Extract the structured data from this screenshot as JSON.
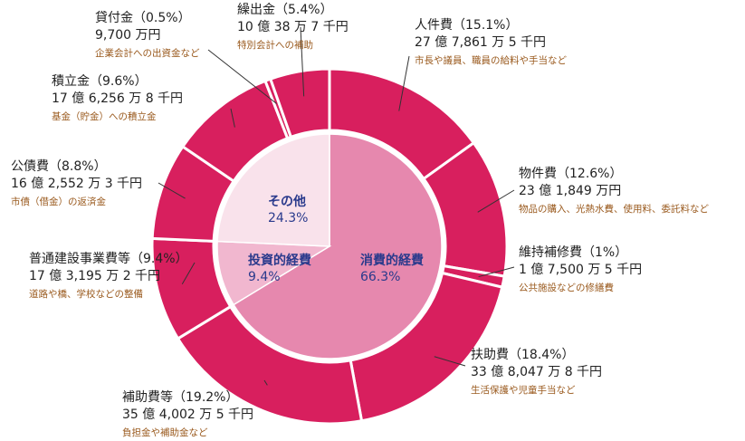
{
  "chart_data": {
    "type": "nested-donut",
    "outer": {
      "categories": [
        "人件費",
        "物件費",
        "維持補修費",
        "扶助費",
        "補助費等",
        "普通建設事業費等",
        "公債費",
        "積立金",
        "貸付金",
        "繰出金"
      ],
      "values": [
        15.1,
        12.6,
        1,
        18.4,
        19.2,
        9.4,
        8.8,
        9.6,
        0.5,
        5.4
      ],
      "value_labels": [
        "（15.1%）",
        "（12.6%）",
        "（1%）",
        "（18.4%）",
        "（19.2%）",
        "（9.4%）",
        "（8.8%）",
        "（9.6%）",
        "（0.5%）",
        "（5.4%）"
      ],
      "amounts": [
        "27 億 7,861 万 5 千円",
        "23 億 1,849 万円",
        "1 億 7,500 万 5 千円",
        "33 億 8,047 万 8 千円",
        "35 億 4,002 万 5 千円",
        "17 億 3,195 万 2 千円",
        "16 億 2,552 万 3 千円",
        "17 億 6,256 万 8 千円",
        "9,700 万円",
        "10 億 38 万 7 千円"
      ],
      "notes": [
        "市長や議員、職員の給料や手当など",
        "物品の購入、光熱水費、使用料、委託料など",
        "公共施設などの修繕費",
        "生活保護や児童手当など",
        "負担金や補助金など",
        "道路や橋、学校などの整備",
        "市債（借金）の返済金",
        "基金（貯金）への積立金",
        "企業会計への出資金など",
        "特別会計への補助"
      ],
      "color": "#d81f5e"
    },
    "inner": {
      "categories": [
        "消費的経費",
        "投資的経費",
        "その他"
      ],
      "values": [
        66.3,
        9.4,
        24.3
      ],
      "value_labels": [
        "66.3%",
        "9.4%",
        "24.3%"
      ],
      "colors": [
        "#e688ae",
        "#f1b7cf",
        "#f9e2eb"
      ]
    }
  }
}
